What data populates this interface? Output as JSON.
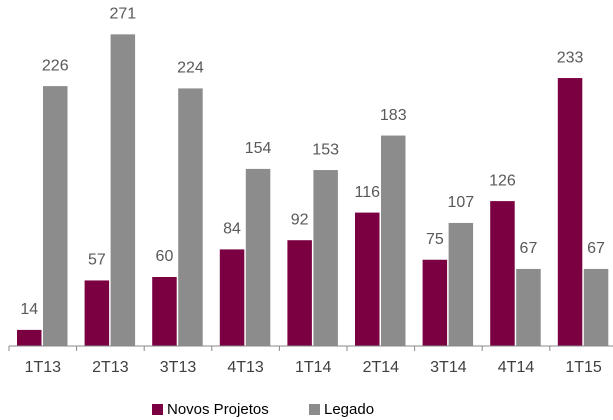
{
  "chart_data": {
    "type": "bar",
    "categories": [
      "1T13",
      "2T13",
      "3T13",
      "4T13",
      "1T14",
      "2T14",
      "3T14",
      "4T14",
      "1T15"
    ],
    "series": [
      {
        "name": "Novos Projetos",
        "color": "#7b0041",
        "values": [
          14,
          57,
          60,
          84,
          92,
          116,
          75,
          126,
          233
        ]
      },
      {
        "name": "Legado",
        "color": "#8c8c8c",
        "values": [
          226,
          271,
          224,
          154,
          153,
          183,
          107,
          67,
          67
        ]
      }
    ],
    "ylim": [
      0,
      300
    ],
    "legend": "bottom"
  }
}
